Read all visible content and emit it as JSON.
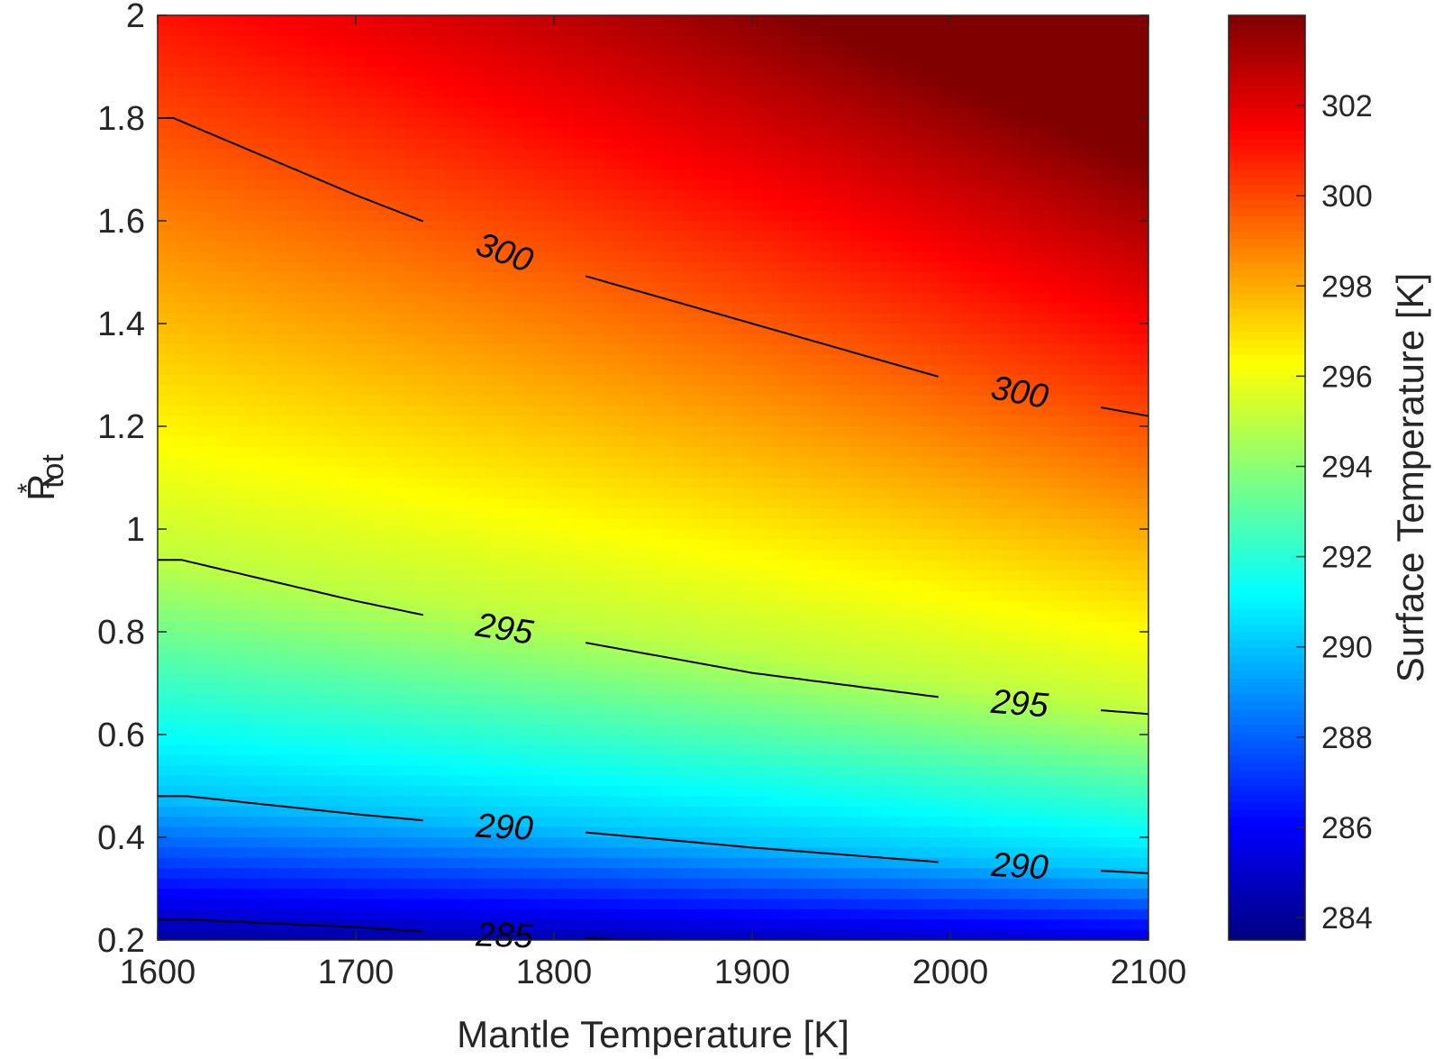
{
  "chart_data": {
    "type": "heatmap",
    "subtype": "filled-contour",
    "colormap": "jet",
    "xlabel": "Mantle Temperature [K]",
    "ylabel": {
      "base": "R",
      "superscript": "*",
      "subscript": "tot"
    },
    "x_ticks": [
      "1600",
      "1700",
      "1800",
      "1900",
      "2000",
      "2100"
    ],
    "y_ticks": [
      "0.2",
      "0.4",
      "0.6",
      "0.8",
      "1",
      "1.2",
      "1.4",
      "1.6",
      "1.8",
      "2"
    ],
    "xlim": [
      1600,
      2100
    ],
    "ylim": [
      0.2,
      2.0
    ],
    "colorbar": {
      "label": "Surface Temperature [K]",
      "clim": [
        283.5,
        304
      ],
      "ticks": [
        "284",
        "286",
        "288",
        "290",
        "292",
        "294",
        "296",
        "298",
        "300",
        "302"
      ]
    },
    "contours": [
      {
        "level": 285,
        "labels": [
          "285"
        ],
        "points": [
          [
            1600,
            0.24
          ],
          [
            1615,
            0.24
          ],
          [
            1700,
            0.225
          ],
          [
            1760,
            0.21
          ],
          [
            1800,
            0.205
          ],
          [
            1850,
            0.2
          ]
        ]
      },
      {
        "level": 290,
        "labels": [
          "290",
          "290"
        ],
        "points": [
          [
            1600,
            0.48
          ],
          [
            1615,
            0.48
          ],
          [
            1700,
            0.445
          ],
          [
            1770,
            0.42
          ],
          [
            1800,
            0.415
          ],
          [
            1900,
            0.38
          ],
          [
            2000,
            0.35
          ],
          [
            2050,
            0.34
          ],
          [
            2100,
            0.33
          ]
        ]
      },
      {
        "level": 295,
        "labels": [
          "295",
          "295"
        ],
        "points": [
          [
            1600,
            0.94
          ],
          [
            1612,
            0.94
          ],
          [
            1700,
            0.86
          ],
          [
            1750,
            0.82
          ],
          [
            1800,
            0.79
          ],
          [
            1900,
            0.72
          ],
          [
            2000,
            0.67
          ],
          [
            2050,
            0.655
          ],
          [
            2100,
            0.64
          ]
        ]
      },
      {
        "level": 300,
        "labels": [
          "300",
          "300"
        ],
        "points": [
          [
            1600,
            1.8
          ],
          [
            1608,
            1.8
          ],
          [
            1700,
            1.65
          ],
          [
            1780,
            1.53
          ],
          [
            1800,
            1.51
          ],
          [
            1900,
            1.4
          ],
          [
            2000,
            1.29
          ],
          [
            2050,
            1.255
          ],
          [
            2100,
            1.22
          ]
        ]
      }
    ],
    "field_model": {
      "description_units": "Surface Temperature [K] as function of Mantle Temperature and R*tot",
      "reference_lines": [
        {
          "y_at_x1600": 0.24,
          "y_at_x2100": 0.19,
          "value": 285
        },
        {
          "y_at_x1600": 0.48,
          "y_at_x2100": 0.33,
          "value": 290
        },
        {
          "y_at_x1600": 0.94,
          "y_at_x2100": 0.64,
          "value": 295
        },
        {
          "y_at_x1600": 1.8,
          "y_at_x2100": 1.22,
          "value": 300
        }
      ]
    }
  }
}
